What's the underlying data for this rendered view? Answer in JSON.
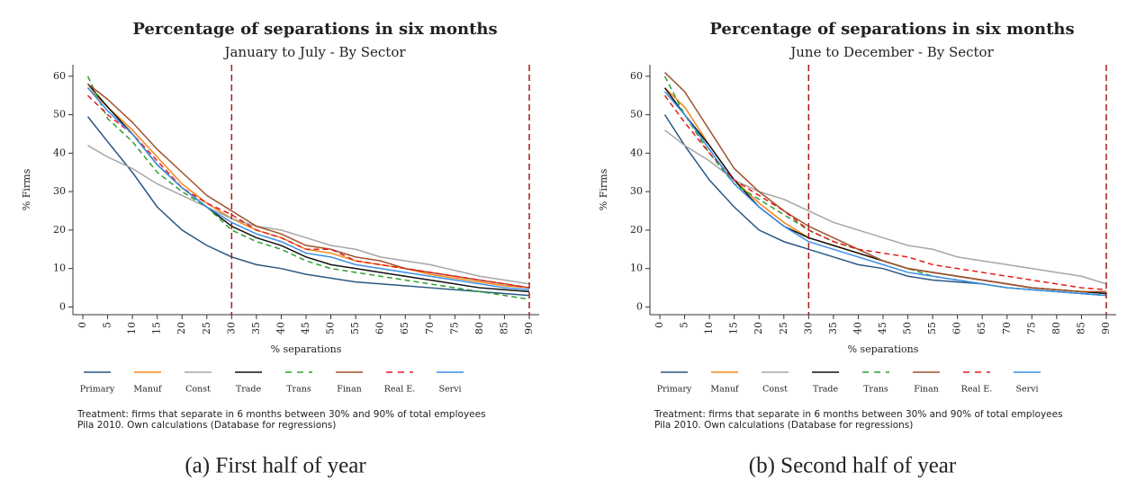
{
  "chart_data": [
    {
      "type": "line",
      "title": "Percentage of separations in six months",
      "subtitle": "January to July - By Sector",
      "x_label": "% separations",
      "y_label": "% Firms",
      "notes": [
        "Treatment: firms that separate in 6 months between 30% and 90% of total employees",
        "Pila 2010. Own calculations (Database for regressions)"
      ],
      "caption": "(a) First half of year",
      "x": [
        1,
        5,
        10,
        15,
        20,
        25,
        30,
        35,
        40,
        45,
        50,
        55,
        60,
        65,
        70,
        75,
        80,
        85,
        90
      ],
      "series": [
        {
          "name": "Primary",
          "color": "#2a5783",
          "dash": false,
          "values": [
            49.5,
            43,
            35,
            26,
            20,
            16,
            13,
            11,
            10,
            8.5,
            7.5,
            6.5,
            6,
            5.5,
            5,
            4.5,
            4,
            3.5,
            3
          ]
        },
        {
          "name": "Manuf",
          "color": "#f58518",
          "dash": false,
          "values": [
            57,
            52,
            46,
            39,
            32,
            27,
            23,
            20,
            18,
            15,
            14,
            12,
            11,
            10,
            8.5,
            7.5,
            6.5,
            5.5,
            5
          ]
        },
        {
          "name": "Const",
          "color": "#a6a6a6",
          "dash": false,
          "values": [
            42,
            39,
            36,
            32,
            29,
            26,
            23,
            21,
            20,
            18,
            16,
            15,
            13,
            12,
            11,
            9.5,
            8,
            7,
            6
          ]
        },
        {
          "name": "Trade",
          "color": "#111111",
          "dash": false,
          "values": [
            58,
            52,
            45,
            37,
            31,
            26,
            21,
            18,
            16,
            13,
            11,
            10,
            9,
            8,
            7,
            6,
            5,
            4.5,
            4
          ]
        },
        {
          "name": "Trans",
          "color": "#2ca02c",
          "dash": true,
          "values": [
            60,
            49,
            43,
            35,
            30,
            26,
            20,
            17,
            15,
            12,
            10,
            9,
            8,
            7,
            6,
            5,
            4,
            3,
            2
          ]
        },
        {
          "name": "Finan",
          "color": "#a0522d",
          "dash": false,
          "values": [
            58,
            54,
            48,
            41,
            35,
            29,
            25,
            21,
            19,
            16,
            15,
            13,
            12,
            10,
            9,
            8,
            7,
            6,
            5
          ]
        },
        {
          "name": "Real E.",
          "color": "#e41a1c",
          "dash": true,
          "values": [
            55,
            50,
            45,
            38,
            31,
            27,
            24,
            20,
            18,
            15,
            15,
            12,
            11,
            10,
            9,
            8,
            7,
            6,
            5
          ]
        },
        {
          "name": "Servi",
          "color": "#3a8ee6",
          "dash": false,
          "values": [
            57,
            51,
            45,
            37,
            31,
            26,
            22,
            19,
            17,
            14,
            13,
            11,
            10,
            9,
            8,
            7,
            6,
            5,
            4.5
          ]
        }
      ],
      "xlim": [
        -2,
        92
      ],
      "ylim": [
        -2,
        63
      ],
      "xticks": [
        0,
        5,
        10,
        15,
        20,
        25,
        30,
        35,
        40,
        45,
        50,
        55,
        60,
        65,
        70,
        75,
        80,
        85,
        90
      ],
      "yticks": [
        0,
        10,
        20,
        30,
        40,
        50,
        60
      ],
      "vlines": [
        30,
        90
      ]
    },
    {
      "type": "line",
      "title": "Percentage of separations in six months",
      "subtitle": "June to December - By Sector",
      "x_label": "% separations",
      "y_label": "% Firms",
      "notes": [
        "Treatment: firms that separate in 6 months between 30% and 90% of total employees",
        "Pila 2010. Own calculations (Database for regressions)"
      ],
      "caption": "(b) Second half of year",
      "x": [
        1,
        5,
        10,
        15,
        20,
        25,
        30,
        35,
        40,
        45,
        50,
        55,
        60,
        65,
        70,
        75,
        80,
        85,
        90
      ],
      "series": [
        {
          "name": "Primary",
          "color": "#2a5783",
          "dash": false,
          "values": [
            50,
            42,
            33,
            26,
            20,
            17,
            15,
            13,
            11,
            10,
            8,
            7,
            6.5,
            6,
            5,
            4.5,
            4,
            3.5,
            3
          ]
        },
        {
          "name": "Manuf",
          "color": "#f58518",
          "dash": false,
          "values": [
            57,
            52,
            42,
            33,
            27,
            22,
            18,
            16,
            14,
            12,
            10,
            9,
            8,
            7,
            6,
            5,
            4.5,
            4,
            3.5
          ]
        },
        {
          "name": "Const",
          "color": "#a6a6a6",
          "dash": false,
          "values": [
            46,
            42,
            38,
            33,
            30,
            28,
            25,
            22,
            20,
            18,
            16,
            15,
            13,
            12,
            11,
            10,
            9,
            8,
            6
          ]
        },
        {
          "name": "Trade",
          "color": "#111111",
          "dash": false,
          "values": [
            57,
            50,
            42,
            33,
            26,
            21,
            18,
            16,
            14,
            12,
            10,
            9,
            8,
            7,
            6,
            5,
            4.5,
            4,
            3.5
          ]
        },
        {
          "name": "Trans",
          "color": "#2ca02c",
          "dash": true,
          "values": [
            60,
            50,
            40,
            32,
            28,
            24,
            20,
            17,
            15,
            12,
            10,
            8,
            7,
            6,
            5,
            4.5,
            4,
            3.5,
            3
          ]
        },
        {
          "name": "Finan",
          "color": "#a0522d",
          "dash": false,
          "values": [
            61,
            56,
            46,
            36,
            30,
            25,
            21,
            18,
            15,
            12,
            10,
            9,
            8,
            7,
            6,
            5,
            4.5,
            4,
            4
          ]
        },
        {
          "name": "Real E.",
          "color": "#e41a1c",
          "dash": true,
          "values": [
            55,
            48,
            40,
            33,
            29,
            25,
            20,
            17,
            15,
            14,
            13,
            11,
            10,
            9,
            8,
            7,
            6,
            5,
            4.5
          ]
        },
        {
          "name": "Servi",
          "color": "#3a8ee6",
          "dash": false,
          "values": [
            56,
            50,
            41,
            32,
            26,
            21,
            17,
            15,
            13,
            11,
            9,
            8,
            7,
            6,
            5,
            4.5,
            4,
            3.5,
            3
          ]
        }
      ],
      "xlim": [
        -2,
        92
      ],
      "ylim": [
        -2,
        63
      ],
      "xticks": [
        0,
        5,
        10,
        15,
        20,
        25,
        30,
        35,
        40,
        45,
        50,
        55,
        60,
        65,
        70,
        75,
        80,
        85,
        90
      ],
      "yticks": [
        0,
        10,
        20,
        30,
        40,
        50,
        60
      ],
      "vlines": [
        30,
        90
      ]
    }
  ]
}
